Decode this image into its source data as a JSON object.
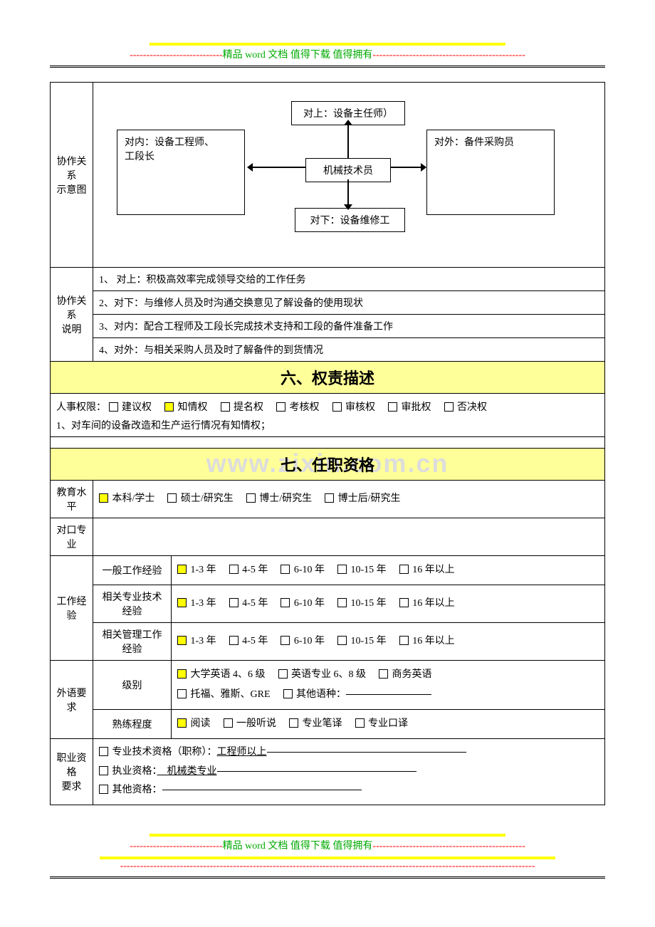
{
  "header": {
    "dashes_left": "----------------------------",
    "text": "精品 word 文档  值得下载  值得拥有",
    "dashes_right": "----------------------------------------------"
  },
  "diagram": {
    "row_label": "协作关系\n示意图",
    "box_top": "对上：设备主任师）",
    "box_left": "对内：设备工程师、\n工段长",
    "box_center": "机械技术员",
    "box_right": "对外：备件采购员",
    "box_bottom": "对下：设备维修工"
  },
  "relation_desc": {
    "row_label": "协作关系\n说明",
    "items": [
      "1、 对上：积极高效率完成领导交给的工作任务",
      "2、对下：与维修人员及时沟通交换意见了解设备的使用现状",
      "3、对内：配合工程师及工段长完成技术支持和工段的备件准备工作",
      "4、对外：与相关采购人员及时了解备件的到货情况"
    ]
  },
  "section6": {
    "title": "六、权责描述",
    "line1_label": "人事权限：",
    "options": [
      {
        "label": "建议权",
        "checked": false
      },
      {
        "label": "知情权",
        "checked": true
      },
      {
        "label": "提名权",
        "checked": false
      },
      {
        "label": "考核权",
        "checked": false
      },
      {
        "label": "审核权",
        "checked": false
      },
      {
        "label": "审批权",
        "checked": false
      },
      {
        "label": "否决权",
        "checked": false
      }
    ],
    "line2": "1、对车间的设备改造和生产运行情况有知情权；"
  },
  "section7": {
    "title": "七、任职资格",
    "watermark": "www.zixin.com.cn",
    "edu": {
      "row_label": "教育水平",
      "options": [
        {
          "label": "本科/学士",
          "checked": true
        },
        {
          "label": "硕士/研究生",
          "checked": false
        },
        {
          "label": "博士/研究生",
          "checked": false
        },
        {
          "label": "博士后/研究生",
          "checked": false
        }
      ]
    },
    "major": {
      "row_label": "对口专业"
    },
    "work_exp": {
      "row_label": "工作经验",
      "rows": [
        {
          "label": "一般工作经验",
          "opts": [
            {
              "label": "1-3 年",
              "checked": true
            },
            {
              "label": "4-5 年",
              "checked": false
            },
            {
              "label": "6-10 年",
              "checked": false
            },
            {
              "label": "10-15 年",
              "checked": false
            },
            {
              "label": "16 年以上",
              "checked": false
            }
          ]
        },
        {
          "label": "相关专业技术\n经验",
          "opts": [
            {
              "label": "1-3 年",
              "checked": true
            },
            {
              "label": "4-5 年",
              "checked": false
            },
            {
              "label": "6-10 年",
              "checked": false
            },
            {
              "label": "10-15 年",
              "checked": false
            },
            {
              "label": "16 年以上",
              "checked": false
            }
          ]
        },
        {
          "label": "相关管理工作\n经验",
          "opts": [
            {
              "label": "1-3 年",
              "checked": true
            },
            {
              "label": "4-5 年",
              "checked": false
            },
            {
              "label": "6-10 年",
              "checked": false
            },
            {
              "label": "10-15 年",
              "checked": false
            },
            {
              "label": "16 年以上",
              "checked": false
            }
          ]
        }
      ]
    },
    "foreign": {
      "row_label": "外语要求",
      "level_label": "级别",
      "level_opts_row1": [
        {
          "label": "大学英语 4、6 级",
          "checked": true
        },
        {
          "label": "英语专业 6、8 级",
          "checked": false
        },
        {
          "label": "商务英语",
          "checked": false
        }
      ],
      "level_opts_row2": [
        {
          "label": "托福、雅斯、GRE",
          "checked": false
        },
        {
          "label": "其他语种：",
          "checked": false,
          "underline": true
        }
      ],
      "prof_label": "熟练程度",
      "prof_opts": [
        {
          "label": "阅读",
          "checked": true
        },
        {
          "label": "一般听说",
          "checked": false
        },
        {
          "label": "专业笔译",
          "checked": false
        },
        {
          "label": "专业口译",
          "checked": false
        }
      ]
    },
    "qual": {
      "row_label": "职业资格\n要求",
      "lines": [
        {
          "prefix": "专业技术资格（职称）：",
          "value": "工程师以上",
          "checked": false
        },
        {
          "prefix": "执业资格：",
          "value": "　机械类专业",
          "checked": false
        },
        {
          "prefix": "其他资格：",
          "value": "",
          "checked": false
        }
      ]
    }
  },
  "footer": {
    "dashes_left": "----------------------------",
    "text": "精品 word 文档  值得下载  值得拥有",
    "dashes_right": "----------------------------------------------",
    "dashes_full": "-----------------------------------------------------------------------------------------------------------------------------"
  }
}
